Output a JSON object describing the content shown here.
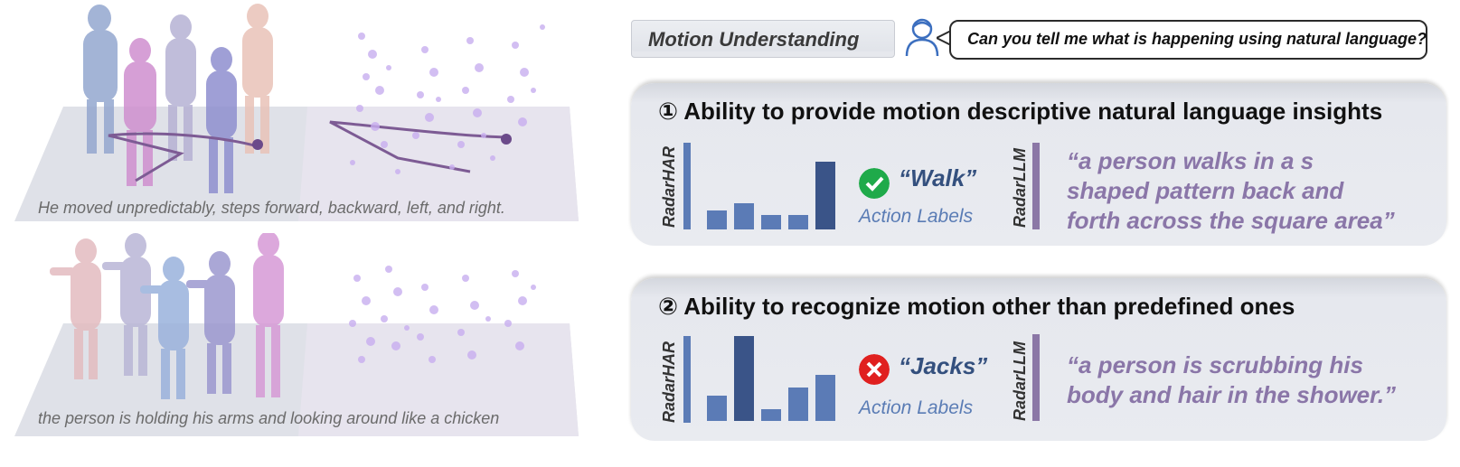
{
  "colors": {
    "radarhar_bar": "#5b7bb6",
    "radarhar_bar_dark": "#3a5488",
    "radarllm_bar": "#8b77a6",
    "check": "#1faa4a",
    "cross": "#e0201f",
    "word": "#34507e",
    "action_label": "#5a7cb5",
    "quote": "#8a76a8"
  },
  "scenes": [
    {
      "caption": "He moved unpredictably, steps forward, backward, left, and right."
    },
    {
      "caption": "the person is holding his arms and looking around like a chicken"
    }
  ],
  "header": {
    "tag": "Motion Understanding",
    "user_icon": "user-icon",
    "question": "Can you tell me what is happening using natural language?"
  },
  "panels": [
    {
      "title": "① Ability to provide motion descriptive natural language insights",
      "radarhar_label": "RadarHAR",
      "radarllm_label": "RadarLLM",
      "histogram": [
        0.22,
        0.3,
        0.17,
        0.17,
        0.78
      ],
      "highlight_index": 4,
      "status_icon": "check-icon",
      "predicted_word": "“Walk”",
      "action_label": "Action Labels",
      "quote": "“a person walks in a s\nshaped pattern back and\nforth across the square area”"
    },
    {
      "title": "② Ability to recognize motion other than predefined ones",
      "radarhar_label": "RadarHAR",
      "radarllm_label": "RadarLLM",
      "histogram": [
        0.3,
        1.0,
        0.14,
        0.39,
        0.54
      ],
      "highlight_index": 1,
      "status_icon": "cross-icon",
      "predicted_word": "“Jacks”",
      "action_label": "Action Labels",
      "quote": "“a person is scrubbing his\nbody and hair in the shower.”"
    }
  ]
}
